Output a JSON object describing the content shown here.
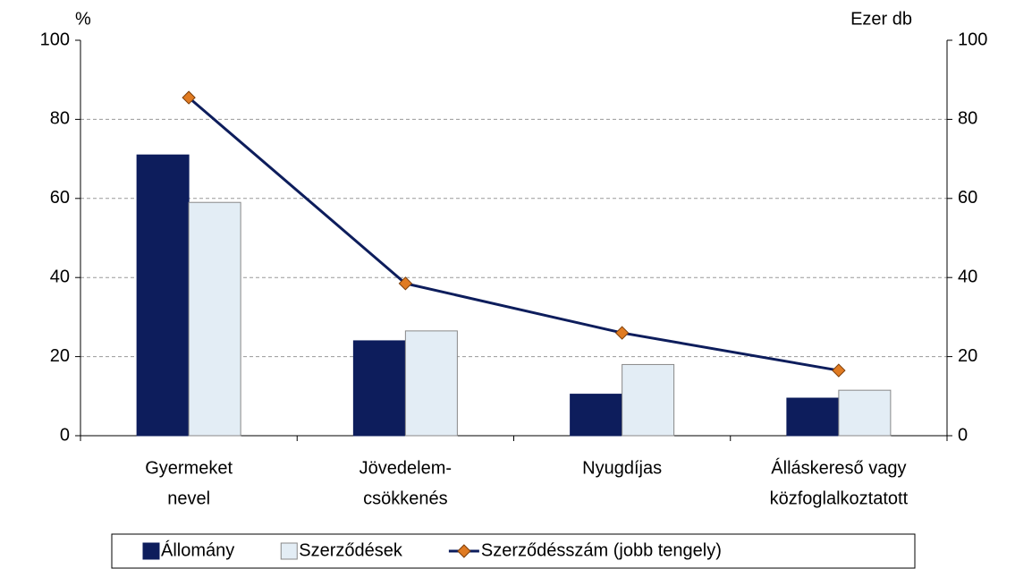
{
  "chart_data": {
    "type": "bar",
    "y_label": "%",
    "y2_label": "Ezer db",
    "categories": [
      [
        "Gyermeket",
        "nevel"
      ],
      [
        "Jövedelem-",
        "csökkenés"
      ],
      [
        "Nyugdíjas"
      ],
      [
        "Álláskereső vagy",
        "közfoglalkoztatott"
      ]
    ],
    "series": [
      {
        "name": "Állomány",
        "type": "bar",
        "color": "#0d1d5c",
        "values": [
          71,
          24,
          10.5,
          9.5
        ]
      },
      {
        "name": "Szerződések",
        "type": "bar",
        "color": "#e3edf5",
        "values": [
          59,
          26.5,
          18,
          11.5
        ]
      },
      {
        "name": "Szerződésszám (jobb tengely)",
        "type": "line",
        "axis": "y2",
        "color": "#0d1d5c",
        "marker_color": "#e07b22",
        "values": [
          85.5,
          38.5,
          26,
          16.5
        ]
      }
    ],
    "ylim": [
      0,
      100
    ],
    "yticks": [
      0,
      20,
      40,
      60,
      80,
      100
    ],
    "y2lim": [
      0,
      100
    ],
    "y2ticks": [
      0,
      20,
      40,
      60,
      80,
      100
    ],
    "grid": true,
    "legend": "bottom"
  }
}
